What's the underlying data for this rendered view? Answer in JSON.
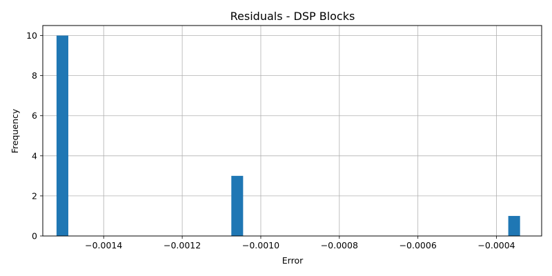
{
  "chart_data": {
    "type": "bar",
    "title": "Residuals - DSP Blocks",
    "xlabel": "Error",
    "ylabel": "Frequency",
    "bins": [
      {
        "x_start": -0.00152,
        "x_end": -0.00149,
        "count": 10
      },
      {
        "x_start": -0.001075,
        "x_end": -0.001045,
        "count": 3
      },
      {
        "x_start": -0.00037,
        "x_end": -0.00034,
        "count": 1
      }
    ],
    "x_ticks": [
      -0.0014,
      -0.0012,
      -0.001,
      -0.0008,
      -0.0006,
      -0.0004
    ],
    "x_tick_labels": [
      "−0.0014",
      "−0.0012",
      "−0.0010",
      "−0.0008",
      "−0.0006",
      "−0.0004"
    ],
    "y_ticks": [
      0,
      2,
      4,
      6,
      8,
      10
    ],
    "y_tick_labels": [
      "0",
      "2",
      "4",
      "6",
      "8",
      "10"
    ],
    "xlim": [
      -0.001555,
      -0.000285
    ],
    "ylim": [
      0,
      10.5
    ],
    "grid": true,
    "bar_color": "#1f77b4"
  }
}
